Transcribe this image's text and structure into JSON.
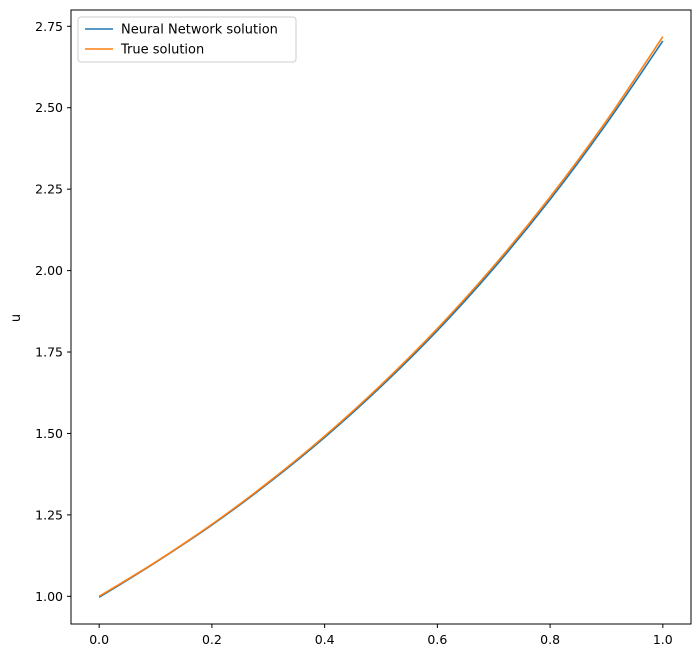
{
  "chart_data": {
    "type": "line",
    "title": "",
    "xlabel": "",
    "ylabel": "u",
    "xlim": [
      -0.05,
      1.05
    ],
    "ylim": [
      0.915,
      2.8
    ],
    "xticks": [
      "0.0",
      "0.2",
      "0.4",
      "0.6",
      "0.8",
      "1.0"
    ],
    "yticks": [
      "1.00",
      "1.25",
      "1.50",
      "1.75",
      "2.00",
      "2.25",
      "2.50",
      "2.75"
    ],
    "grid": false,
    "legend_position": "top-left",
    "series": [
      {
        "name": "Neural Network solution",
        "color": "#1f77b4",
        "x": [
          0.0,
          0.1,
          0.2,
          0.3,
          0.4,
          0.5,
          0.6,
          0.7,
          0.8,
          0.9,
          1.0
        ],
        "y": [
          0.997,
          1.104,
          1.219,
          1.347,
          1.488,
          1.644,
          1.816,
          2.007,
          2.218,
          2.451,
          2.705
        ]
      },
      {
        "name": "True solution",
        "color": "#ff7f0e",
        "x": [
          0.0,
          0.1,
          0.2,
          0.3,
          0.4,
          0.5,
          0.6,
          0.7,
          0.8,
          0.9,
          1.0
        ],
        "y": [
          1.0,
          1.105,
          1.221,
          1.35,
          1.492,
          1.649,
          1.822,
          2.014,
          2.226,
          2.46,
          2.718
        ]
      }
    ]
  }
}
